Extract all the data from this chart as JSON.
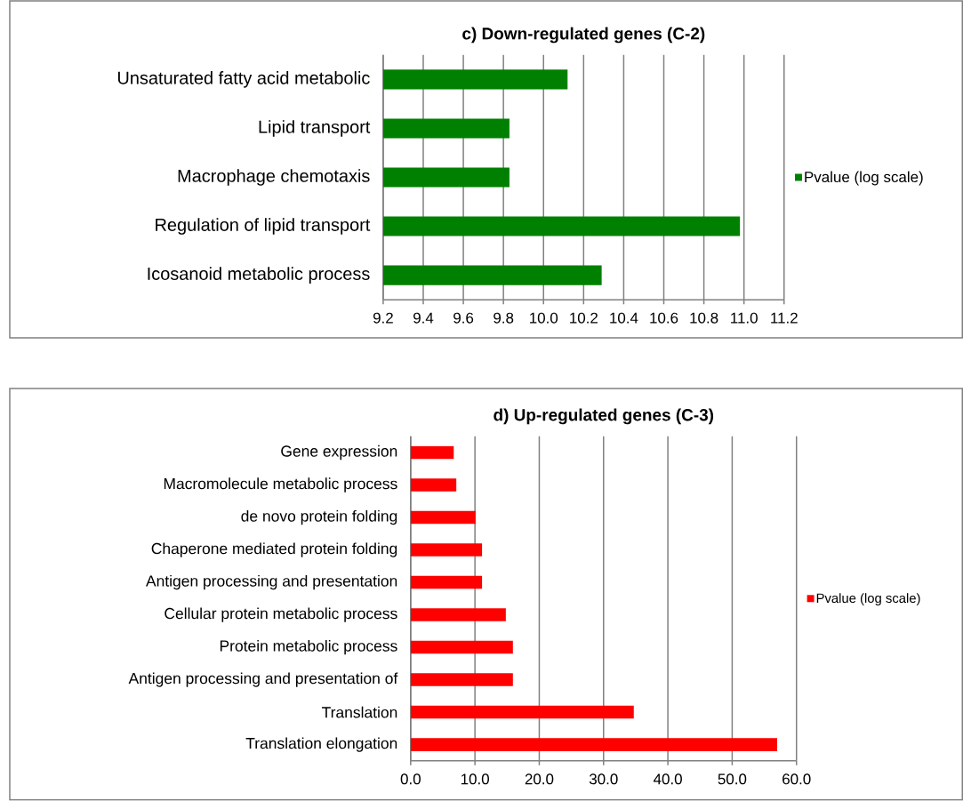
{
  "chart_data": [
    {
      "type": "bar",
      "orientation": "horizontal",
      "title": "c) Down-regulated genes (C-2)",
      "categories": [
        "Unsaturated fatty acid metabolic",
        "Lipid transport",
        "Macrophage chemotaxis",
        "Regulation of lipid transport",
        "Icosanoid metabolic process"
      ],
      "series": [
        {
          "name": "Pvalue (log scale)",
          "color": "#008000",
          "values": [
            10.12,
            9.83,
            9.83,
            10.98,
            10.29
          ]
        }
      ],
      "xlim": [
        9.2,
        11.2
      ],
      "xticks": [
        {
          "value": 9.2,
          "label": "9.2"
        },
        {
          "value": 9.4,
          "label": "9.4"
        },
        {
          "value": 9.6,
          "label": "9.6"
        },
        {
          "value": 9.8,
          "label": "9.8"
        },
        {
          "value": 10.0,
          "label": "10.0"
        },
        {
          "value": 10.2,
          "label": "10.2"
        },
        {
          "value": 10.4,
          "label": "10.4"
        },
        {
          "value": 10.6,
          "label": "10.6"
        },
        {
          "value": 10.8,
          "label": "10.8"
        },
        {
          "value": 11.0,
          "label": "11.0"
        },
        {
          "value": 11.2,
          "label": "11.2"
        }
      ],
      "grid": "x",
      "legend": "right"
    },
    {
      "type": "bar",
      "orientation": "horizontal",
      "title": "d) Up-regulated genes (C-3)",
      "categories": [
        "Gene expression",
        "Macromolecule metabolic process",
        "de novo protein folding",
        "Chaperone mediated protein folding",
        "Antigen processing and presentation",
        "Cellular protein metabolic process",
        "Protein metabolic process",
        "Antigen processing and presentation of",
        "Translation",
        "Translation elongation"
      ],
      "series": [
        {
          "name": "Pvalue (log scale)",
          "color": "#ff0000",
          "values": [
            6.7,
            7.1,
            10.1,
            11.1,
            11.1,
            14.8,
            15.9,
            15.9,
            34.7,
            57.0
          ]
        }
      ],
      "xlim": [
        0,
        60
      ],
      "xticks": [
        {
          "value": 0,
          "label": "0.0"
        },
        {
          "value": 10,
          "label": "10.0"
        },
        {
          "value": 20,
          "label": "20.0"
        },
        {
          "value": 30,
          "label": "30.0"
        },
        {
          "value": 40,
          "label": "40.0"
        },
        {
          "value": 50,
          "label": "50.0"
        },
        {
          "value": 60,
          "label": "60.0"
        }
      ],
      "grid": "x",
      "legend": "right"
    }
  ]
}
